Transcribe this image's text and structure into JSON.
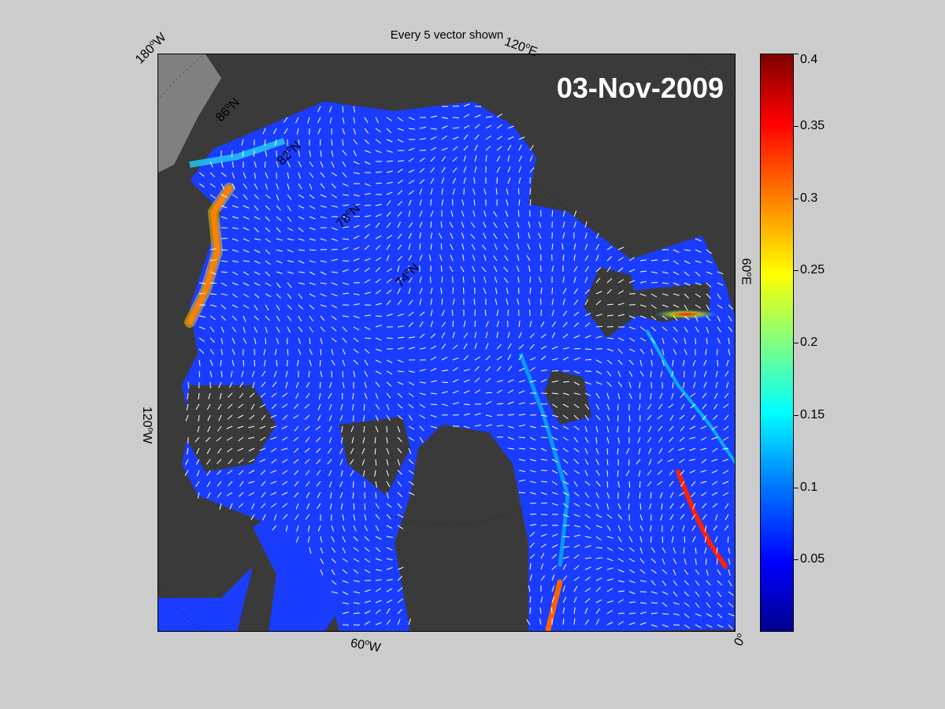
{
  "plot": {
    "title": "Every 5 vector shown",
    "date": "03-Nov-2009"
  },
  "axis_labels": {
    "lon_180w": "180",
    "lon_120e": "120",
    "lon_60e": "60",
    "lon_120w": "120",
    "lon_60w": "60",
    "lon_0": "0",
    "lat_86n": "86",
    "lat_82n": "82",
    "lat_78n": "78",
    "lat_74n": "74"
  },
  "colorbar": {
    "ticks": [
      "0.4",
      "0.35",
      "0.3",
      "0.25",
      "0.2",
      "0.15",
      "0.1",
      "0.05"
    ],
    "min": 0.0,
    "max": 0.4
  },
  "colors": {
    "background": "#cccccc",
    "land": "#3a3a3a",
    "ocean_low": "#0000ff",
    "high_speed": "#ff0000",
    "vectors": "#ffffff"
  },
  "chart_data": {
    "type": "heatmap",
    "title": "Every 5 vector shown",
    "annotation": "03-Nov-2009",
    "colorbar_range": [
      0,
      0.4
    ],
    "colorbar_ticks": [
      0.05,
      0.1,
      0.15,
      0.2,
      0.25,
      0.3,
      0.35,
      0.4
    ]
  }
}
